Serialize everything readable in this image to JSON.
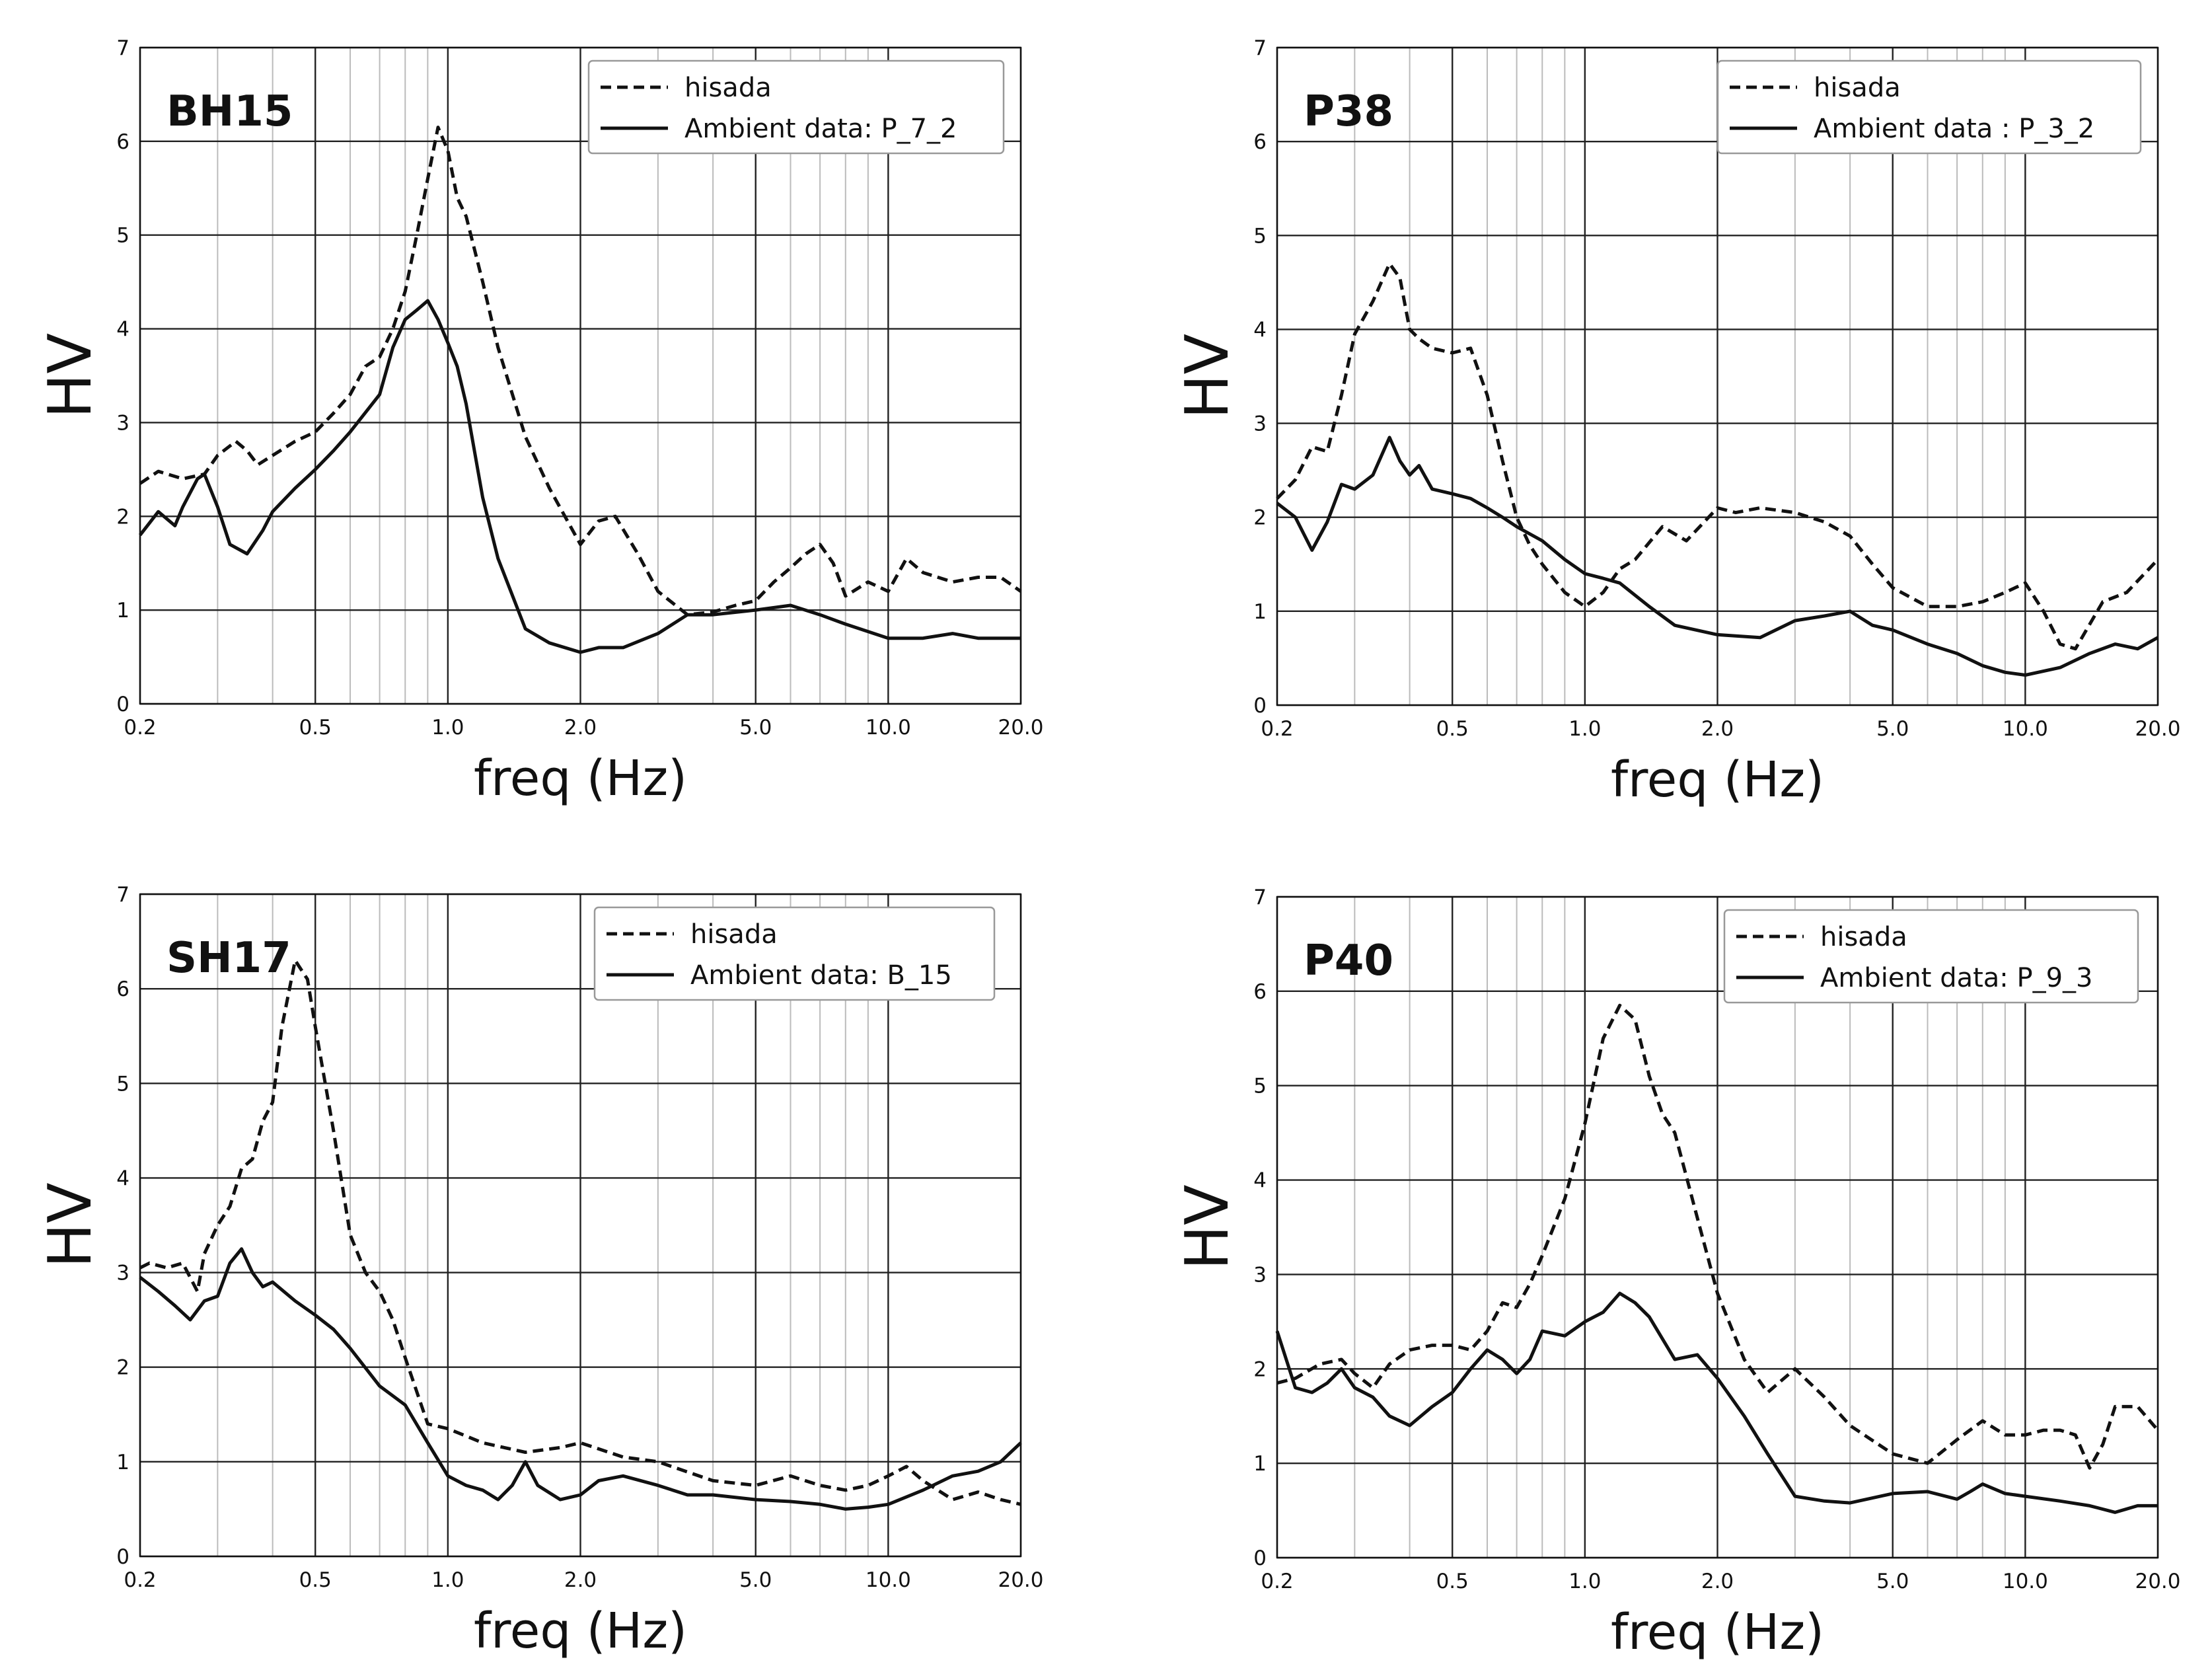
{
  "chart_data": [
    {
      "type": "line",
      "title": "BH15",
      "xlabel": "freq (Hz)",
      "ylabel": "HV",
      "xscale": "log",
      "xlim": [
        0.2,
        20.0
      ],
      "ylim": [
        0,
        7
      ],
      "xticks": [
        0.2,
        0.5,
        1.0,
        2.0,
        5.0,
        10.0,
        20.0
      ],
      "xtick_labels": [
        "0.2",
        "0.5",
        "1.0",
        "2.0",
        "5.0",
        "10.0",
        "20.0"
      ],
      "yticks": [
        0,
        1,
        2,
        3,
        4,
        5,
        6,
        7
      ],
      "ytick_labels": [
        "0",
        "1",
        "2",
        "3",
        "4",
        "5",
        "6",
        "7"
      ],
      "legend_position": "top-right",
      "series": [
        {
          "name": "hisada",
          "style": "dashed",
          "x": [
            0.2,
            0.22,
            0.25,
            0.28,
            0.3,
            0.33,
            0.35,
            0.37,
            0.4,
            0.45,
            0.5,
            0.55,
            0.6,
            0.65,
            0.7,
            0.75,
            0.8,
            0.85,
            0.9,
            0.95,
            1.0,
            1.05,
            1.1,
            1.2,
            1.3,
            1.5,
            1.7,
            2.0,
            2.2,
            2.4,
            2.7,
            3.0,
            3.5,
            4.0,
            4.5,
            5.0,
            5.5,
            6.0,
            6.5,
            7.0,
            7.5,
            8.0,
            9.0,
            10.0,
            11.0,
            12.0,
            14.0,
            16.0,
            18.0,
            20.0
          ],
          "y": [
            2.35,
            2.48,
            2.4,
            2.45,
            2.65,
            2.8,
            2.7,
            2.55,
            2.65,
            2.8,
            2.9,
            3.1,
            3.3,
            3.6,
            3.7,
            4.0,
            4.4,
            5.0,
            5.6,
            6.15,
            5.9,
            5.4,
            5.2,
            4.5,
            3.8,
            2.85,
            2.3,
            1.7,
            1.95,
            2.0,
            1.6,
            1.2,
            0.95,
            0.98,
            1.05,
            1.1,
            1.3,
            1.45,
            1.6,
            1.7,
            1.5,
            1.15,
            1.3,
            1.2,
            1.55,
            1.4,
            1.3,
            1.35,
            1.35,
            1.2
          ]
        },
        {
          "name": "Ambient data: P_7_2",
          "style": "solid",
          "x": [
            0.2,
            0.22,
            0.24,
            0.25,
            0.27,
            0.28,
            0.3,
            0.32,
            0.35,
            0.38,
            0.4,
            0.45,
            0.5,
            0.55,
            0.6,
            0.7,
            0.75,
            0.8,
            0.85,
            0.9,
            0.95,
            1.0,
            1.05,
            1.1,
            1.2,
            1.3,
            1.5,
            1.7,
            2.0,
            2.2,
            2.5,
            3.0,
            3.5,
            4.0,
            5.0,
            6.0,
            7.0,
            8.0,
            10.0,
            12.0,
            14.0,
            16.0,
            20.0
          ],
          "y": [
            1.8,
            2.05,
            1.9,
            2.1,
            2.4,
            2.45,
            2.1,
            1.7,
            1.6,
            1.85,
            2.05,
            2.3,
            2.5,
            2.7,
            2.9,
            3.3,
            3.8,
            4.1,
            4.2,
            4.3,
            4.1,
            3.85,
            3.6,
            3.2,
            2.2,
            1.55,
            0.8,
            0.65,
            0.55,
            0.6,
            0.6,
            0.75,
            0.95,
            0.95,
            1.0,
            1.05,
            0.95,
            0.85,
            0.7,
            0.7,
            0.75,
            0.7,
            0.7
          ]
        }
      ]
    },
    {
      "type": "line",
      "title": "P38",
      "xlabel": "freq (Hz)",
      "ylabel": "HV",
      "xscale": "log",
      "xlim": [
        0.2,
        20.0
      ],
      "ylim": [
        0,
        7
      ],
      "xticks": [
        0.2,
        0.5,
        1.0,
        2.0,
        5.0,
        10.0,
        20.0
      ],
      "xtick_labels": [
        "0.2",
        "0.5",
        "1.0",
        "2.0",
        "5.0",
        "10.0",
        "20.0"
      ],
      "yticks": [
        0,
        1,
        2,
        3,
        4,
        5,
        6,
        7
      ],
      "ytick_labels": [
        "0",
        "1",
        "2",
        "3",
        "4",
        "5",
        "6",
        "7"
      ],
      "legend_position": "top-right",
      "series": [
        {
          "name": "hisada",
          "style": "dashed",
          "x": [
            0.2,
            0.22,
            0.24,
            0.26,
            0.28,
            0.3,
            0.33,
            0.36,
            0.38,
            0.4,
            0.42,
            0.45,
            0.5,
            0.55,
            0.6,
            0.65,
            0.7,
            0.75,
            0.8,
            0.9,
            1.0,
            1.1,
            1.2,
            1.3,
            1.5,
            1.7,
            2.0,
            2.2,
            2.5,
            3.0,
            3.5,
            4.0,
            4.5,
            5.0,
            6.0,
            7.0,
            8.0,
            9.0,
            10.0,
            11.0,
            12.0,
            13.0,
            15.0,
            17.0,
            20.0
          ],
          "y": [
            2.2,
            2.4,
            2.75,
            2.7,
            3.3,
            3.95,
            4.3,
            4.7,
            4.55,
            4.0,
            3.9,
            3.8,
            3.75,
            3.8,
            3.3,
            2.6,
            2.0,
            1.7,
            1.5,
            1.2,
            1.05,
            1.2,
            1.45,
            1.55,
            1.9,
            1.75,
            2.1,
            2.05,
            2.1,
            2.05,
            1.95,
            1.8,
            1.5,
            1.25,
            1.05,
            1.05,
            1.1,
            1.2,
            1.3,
            1.0,
            0.65,
            0.6,
            1.1,
            1.2,
            1.55
          ]
        },
        {
          "name": "Ambient data : P_3_2",
          "style": "solid",
          "x": [
            0.2,
            0.22,
            0.24,
            0.26,
            0.28,
            0.3,
            0.33,
            0.36,
            0.38,
            0.4,
            0.42,
            0.45,
            0.5,
            0.55,
            0.6,
            0.65,
            0.7,
            0.8,
            0.9,
            1.0,
            1.1,
            1.2,
            1.4,
            1.6,
            2.0,
            2.5,
            3.0,
            3.5,
            4.0,
            4.5,
            5.0,
            6.0,
            7.0,
            8.0,
            9.0,
            10.0,
            12.0,
            14.0,
            16.0,
            18.0,
            20.0
          ],
          "y": [
            2.15,
            2.0,
            1.65,
            1.95,
            2.35,
            2.3,
            2.45,
            2.85,
            2.6,
            2.45,
            2.55,
            2.3,
            2.25,
            2.2,
            2.1,
            2.0,
            1.9,
            1.75,
            1.55,
            1.4,
            1.35,
            1.3,
            1.05,
            0.85,
            0.75,
            0.72,
            0.9,
            0.95,
            1.0,
            0.85,
            0.8,
            0.65,
            0.55,
            0.42,
            0.35,
            0.32,
            0.4,
            0.55,
            0.65,
            0.6,
            0.72
          ]
        }
      ]
    },
    {
      "type": "line",
      "title": "SH17",
      "xlabel": "freq (Hz)",
      "ylabel": "HV",
      "xscale": "log",
      "xlim": [
        0.2,
        20.0
      ],
      "ylim": [
        0,
        7
      ],
      "xticks": [
        0.2,
        0.5,
        1.0,
        2.0,
        5.0,
        10.0,
        20.0
      ],
      "xtick_labels": [
        "0.2",
        "0.5",
        "1.0",
        "2.0",
        "5.0",
        "10.0",
        "20.0"
      ],
      "yticks": [
        0,
        1,
        2,
        3,
        4,
        5,
        6,
        7
      ],
      "ytick_labels": [
        "0",
        "1",
        "2",
        "3",
        "4",
        "5",
        "6",
        "7"
      ],
      "legend_position": "top-right",
      "series": [
        {
          "name": "hisada",
          "style": "dashed",
          "x": [
            0.2,
            0.21,
            0.23,
            0.25,
            0.27,
            0.28,
            0.3,
            0.32,
            0.34,
            0.36,
            0.38,
            0.4,
            0.42,
            0.45,
            0.48,
            0.5,
            0.55,
            0.6,
            0.65,
            0.7,
            0.75,
            0.8,
            0.9,
            1.0,
            1.2,
            1.5,
            1.8,
            2.0,
            2.5,
            3.0,
            4.0,
            5.0,
            6.0,
            7.0,
            8.0,
            9.0,
            10.0,
            11.0,
            12.0,
            14.0,
            16.0,
            18.0,
            20.0
          ],
          "y": [
            3.05,
            3.1,
            3.05,
            3.1,
            2.8,
            3.2,
            3.5,
            3.7,
            4.1,
            4.2,
            4.6,
            4.8,
            5.6,
            6.3,
            6.1,
            5.6,
            4.5,
            3.4,
            3.0,
            2.8,
            2.5,
            2.1,
            1.4,
            1.35,
            1.2,
            1.1,
            1.15,
            1.2,
            1.05,
            1.0,
            0.8,
            0.75,
            0.85,
            0.75,
            0.7,
            0.75,
            0.85,
            0.95,
            0.8,
            0.6,
            0.68,
            0.6,
            0.55
          ]
        },
        {
          "name": "Ambient data: B_15",
          "style": "solid",
          "x": [
            0.2,
            0.22,
            0.24,
            0.26,
            0.28,
            0.3,
            0.32,
            0.34,
            0.36,
            0.38,
            0.4,
            0.45,
            0.5,
            0.55,
            0.6,
            0.7,
            0.8,
            0.9,
            1.0,
            1.1,
            1.2,
            1.3,
            1.4,
            1.5,
            1.6,
            1.8,
            2.0,
            2.2,
            2.5,
            3.0,
            3.5,
            4.0,
            5.0,
            6.0,
            7.0,
            8.0,
            9.0,
            10.0,
            12.0,
            14.0,
            16.0,
            18.0,
            20.0
          ],
          "y": [
            2.95,
            2.8,
            2.65,
            2.5,
            2.7,
            2.75,
            3.1,
            3.25,
            3.0,
            2.85,
            2.9,
            2.7,
            2.55,
            2.4,
            2.2,
            1.8,
            1.6,
            1.2,
            0.85,
            0.75,
            0.7,
            0.6,
            0.75,
            1.0,
            0.75,
            0.6,
            0.65,
            0.8,
            0.85,
            0.75,
            0.65,
            0.65,
            0.6,
            0.58,
            0.55,
            0.5,
            0.52,
            0.55,
            0.7,
            0.85,
            0.9,
            1.0,
            1.2
          ]
        }
      ]
    },
    {
      "type": "line",
      "title": "P40",
      "xlabel": "freq (Hz)",
      "ylabel": "HV",
      "xscale": "log",
      "xlim": [
        0.2,
        20.0
      ],
      "ylim": [
        0,
        7
      ],
      "xticks": [
        0.2,
        0.5,
        1.0,
        2.0,
        5.0,
        10.0,
        20.0
      ],
      "xtick_labels": [
        "0.2",
        "0.5",
        "1.0",
        "2.0",
        "5.0",
        "10.0",
        "20.0"
      ],
      "yticks": [
        0,
        1,
        2,
        3,
        4,
        5,
        6,
        7
      ],
      "ytick_labels": [
        "0",
        "1",
        "2",
        "3",
        "4",
        "5",
        "6",
        "7"
      ],
      "legend_position": "top-right",
      "series": [
        {
          "name": "hisada",
          "style": "dashed",
          "x": [
            0.2,
            0.22,
            0.25,
            0.28,
            0.3,
            0.33,
            0.36,
            0.4,
            0.45,
            0.5,
            0.55,
            0.6,
            0.65,
            0.7,
            0.75,
            0.8,
            0.9,
            1.0,
            1.1,
            1.2,
            1.3,
            1.4,
            1.5,
            1.6,
            1.8,
            2.0,
            2.3,
            2.6,
            3.0,
            3.5,
            4.0,
            5.0,
            6.0,
            7.0,
            8.0,
            9.0,
            10.0,
            11.0,
            12.0,
            13.0,
            14.0,
            15.0,
            16.0,
            18.0,
            20.0
          ],
          "y": [
            1.85,
            1.9,
            2.05,
            2.1,
            1.95,
            1.8,
            2.05,
            2.2,
            2.25,
            2.25,
            2.2,
            2.4,
            2.7,
            2.65,
            2.9,
            3.2,
            3.8,
            4.6,
            5.5,
            5.85,
            5.7,
            5.1,
            4.7,
            4.5,
            3.6,
            2.8,
            2.1,
            1.75,
            2.0,
            1.7,
            1.4,
            1.1,
            1.0,
            1.25,
            1.45,
            1.3,
            1.3,
            1.35,
            1.35,
            1.3,
            0.95,
            1.2,
            1.6,
            1.6,
            1.35
          ]
        },
        {
          "name": "Ambient data: P_9_3",
          "style": "solid",
          "x": [
            0.2,
            0.22,
            0.24,
            0.26,
            0.28,
            0.3,
            0.33,
            0.36,
            0.4,
            0.45,
            0.5,
            0.55,
            0.6,
            0.65,
            0.7,
            0.75,
            0.8,
            0.9,
            1.0,
            1.1,
            1.2,
            1.3,
            1.4,
            1.6,
            1.8,
            2.0,
            2.3,
            2.6,
            3.0,
            3.5,
            4.0,
            5.0,
            6.0,
            7.0,
            7.5,
            8.0,
            9.0,
            10.0,
            12.0,
            14.0,
            16.0,
            18.0,
            20.0
          ],
          "y": [
            2.4,
            1.8,
            1.75,
            1.85,
            2.0,
            1.8,
            1.7,
            1.5,
            1.4,
            1.6,
            1.75,
            2.0,
            2.2,
            2.1,
            1.95,
            2.1,
            2.4,
            2.35,
            2.5,
            2.6,
            2.8,
            2.7,
            2.55,
            2.1,
            2.15,
            1.9,
            1.5,
            1.1,
            0.65,
            0.6,
            0.58,
            0.68,
            0.7,
            0.62,
            0.7,
            0.78,
            0.68,
            0.65,
            0.6,
            0.55,
            0.48,
            0.55,
            0.55
          ]
        }
      ]
    }
  ]
}
